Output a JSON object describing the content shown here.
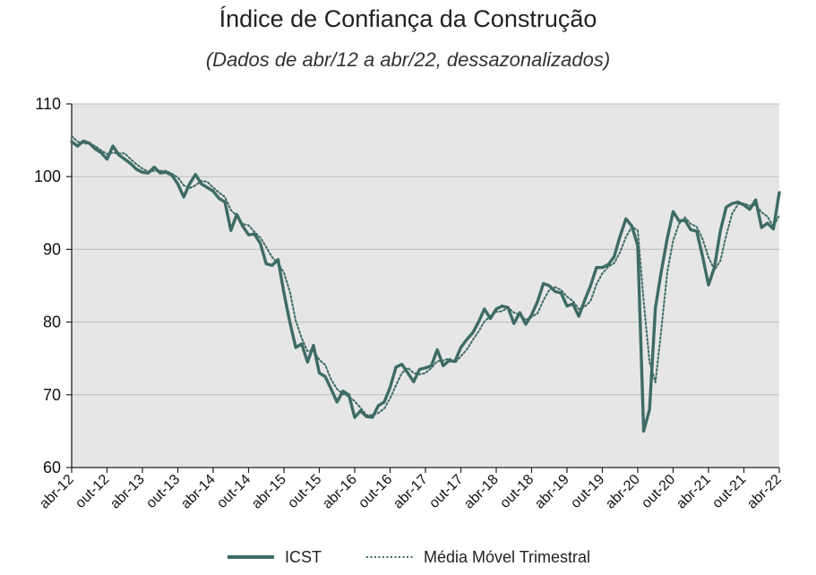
{
  "chart_data": {
    "type": "line",
    "title": "Índice de Confiança da Construção",
    "subtitle": "(Dados de abr/12 a abr/22, dessazonalizados)",
    "ylim": [
      60,
      110
    ],
    "yticks": [
      60,
      70,
      80,
      90,
      100,
      110
    ],
    "grid": true,
    "legend_position": "bottom",
    "colors": {
      "icst": "#3d6b66",
      "mm3": "#3d6b66",
      "plot_bg": "#e6e6e6",
      "grid": "#bdbdbd"
    },
    "x_labels": [
      "abr-12",
      "out-12",
      "abr-13",
      "out-13",
      "abr-14",
      "out-14",
      "abr-15",
      "out-15",
      "abr-16",
      "out-16",
      "abr-17",
      "out-17",
      "abr-18",
      "out-18",
      "abr-19",
      "out-19",
      "abr-20",
      "out-20",
      "abr-21",
      "out-21",
      "abr-22"
    ],
    "x_label_index": [
      0,
      6,
      12,
      18,
      24,
      30,
      36,
      42,
      48,
      54,
      60,
      66,
      72,
      78,
      84,
      90,
      96,
      102,
      108,
      114,
      120
    ],
    "series": [
      {
        "name": "ICST",
        "style": "solid",
        "values": [
          104.8,
          104.2,
          104.9,
          104.6,
          103.8,
          103.3,
          102.4,
          104.2,
          103.0,
          102.4,
          101.8,
          101.0,
          100.6,
          100.5,
          101.3,
          100.5,
          100.6,
          100.2,
          99.0,
          97.2,
          99.0,
          100.3,
          99.0,
          98.5,
          98.0,
          97.0,
          96.5,
          92.6,
          94.8,
          93.2,
          92.0,
          92.1,
          90.8,
          88.0,
          87.8,
          88.6,
          84.0,
          80.0,
          76.5,
          77.0,
          74.5,
          76.8,
          73.0,
          72.5,
          70.8,
          69.0,
          70.5,
          70.0,
          66.9,
          67.8,
          67.0,
          66.9,
          68.5,
          69.0,
          71.0,
          73.8,
          74.2,
          73.0,
          71.8,
          73.5,
          73.7,
          74.0,
          76.2,
          74.0,
          74.7,
          74.6,
          76.5,
          77.6,
          78.5,
          80.0,
          81.8,
          80.5,
          81.8,
          82.2,
          82.0,
          79.8,
          81.3,
          79.7,
          81.0,
          82.8,
          85.3,
          85.0,
          84.2,
          84.0,
          82.2,
          82.5,
          80.8,
          83.0,
          85.0,
          87.5,
          87.5,
          87.9,
          89.0,
          91.8,
          94.2,
          93.2,
          90.5,
          65.0,
          68.0,
          82.0,
          87.0,
          91.5,
          95.2,
          93.9,
          94.0,
          92.7,
          92.5,
          89.0,
          85.1,
          87.5,
          92.5,
          95.8,
          96.3,
          96.5,
          96.1,
          95.5,
          96.8,
          93.0,
          93.6,
          92.8,
          97.8
        ]
      },
      {
        "name": "Média Móvel Trimestral",
        "style": "dotted",
        "values": [
          105.6,
          104.8,
          104.6,
          104.5,
          104.2,
          103.6,
          103.1,
          103.3,
          103.2,
          103.2,
          102.4,
          101.7,
          101.1,
          100.7,
          100.8,
          100.8,
          100.8,
          100.4,
          99.9,
          98.8,
          98.4,
          98.8,
          99.4,
          99.3,
          98.5,
          97.8,
          97.2,
          95.4,
          94.6,
          93.5,
          93.3,
          92.4,
          91.6,
          90.3,
          88.9,
          88.1,
          86.8,
          84.2,
          80.2,
          77.8,
          76.0,
          76.1,
          74.8,
          74.1,
          72.1,
          70.8,
          70.1,
          69.8,
          69.1,
          68.2,
          67.2,
          67.2,
          67.5,
          68.1,
          69.5,
          71.3,
          73.0,
          73.7,
          73.0,
          72.8,
          73.0,
          73.7,
          74.6,
          74.7,
          75.0,
          74.4,
          75.3,
          76.2,
          77.5,
          78.7,
          80.1,
          80.8,
          81.4,
          81.5,
          82.0,
          81.3,
          81.0,
          80.3,
          80.7,
          81.2,
          83.0,
          84.4,
          84.8,
          84.4,
          83.5,
          82.9,
          81.8,
          82.1,
          82.9,
          85.2,
          86.7,
          87.6,
          88.1,
          89.6,
          91.7,
          93.1,
          92.6,
          82.9,
          74.5,
          71.7,
          79.0,
          86.8,
          91.2,
          93.5,
          94.4,
          93.5,
          93.1,
          91.4,
          88.9,
          87.2,
          88.4,
          91.9,
          94.9,
          96.2,
          96.3,
          96.0,
          96.1,
          95.1,
          94.5,
          93.1,
          94.7
        ]
      }
    ]
  },
  "legend": {
    "items": [
      "ICST",
      "Média Móvel Trimestral"
    ]
  }
}
